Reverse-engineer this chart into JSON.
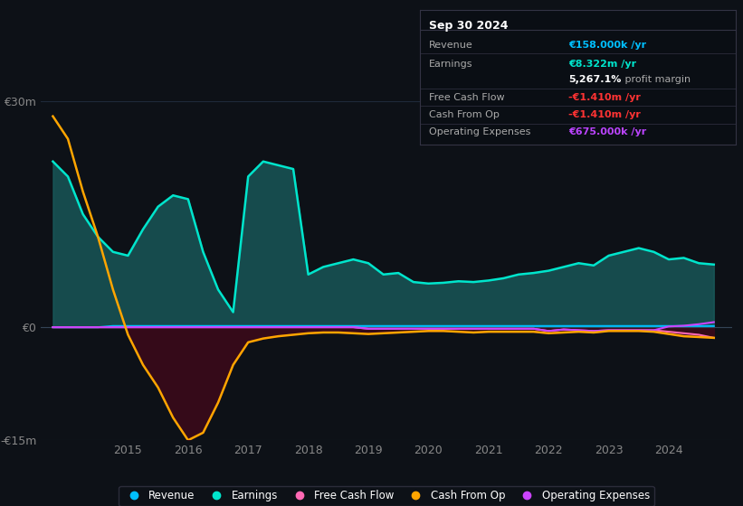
{
  "bg_color": "#0d1117",
  "plot_bg_color": "#0d1117",
  "grid_color": "#1e2a3a",
  "ylim": [
    -15000000,
    30000000
  ],
  "yticks": [
    -15000000,
    0,
    30000000
  ],
  "ytick_labels": [
    "-€15m",
    "€0",
    "€30m"
  ],
  "years": [
    2013.75,
    2014.0,
    2014.25,
    2014.5,
    2014.75,
    2015.0,
    2015.25,
    2015.5,
    2015.75,
    2016.0,
    2016.25,
    2016.5,
    2016.75,
    2017.0,
    2017.25,
    2017.5,
    2017.75,
    2018.0,
    2018.25,
    2018.5,
    2018.75,
    2019.0,
    2019.25,
    2019.5,
    2019.75,
    2020.0,
    2020.25,
    2020.5,
    2020.75,
    2021.0,
    2021.25,
    2021.5,
    2021.75,
    2022.0,
    2022.25,
    2022.5,
    2022.75,
    2023.0,
    2023.25,
    2023.5,
    2023.75,
    2024.0,
    2024.25,
    2024.5,
    2024.75
  ],
  "revenue": [
    0,
    0,
    0,
    0,
    158000,
    158000,
    158000,
    158000,
    158000,
    158000,
    158000,
    158000,
    158000,
    158000,
    158000,
    158000,
    158000,
    158000,
    158000,
    158000,
    158000,
    158000,
    158000,
    158000,
    158000,
    158000,
    158000,
    158000,
    158000,
    158000,
    158000,
    158000,
    158000,
    158000,
    158000,
    158000,
    158000,
    158000,
    158000,
    158000,
    158000,
    158000,
    158000,
    158000,
    158000
  ],
  "earnings": [
    22000000,
    20000000,
    15000000,
    12000000,
    10000000,
    9500000,
    13000000,
    16000000,
    17500000,
    17000000,
    10000000,
    5000000,
    2000000,
    20000000,
    22000000,
    21500000,
    21000000,
    7000000,
    8000000,
    8500000,
    9000000,
    8500000,
    7000000,
    7200000,
    6000000,
    5800000,
    5900000,
    6100000,
    6000000,
    6200000,
    6500000,
    7000000,
    7200000,
    7500000,
    8000000,
    8500000,
    8200000,
    9500000,
    10000000,
    10500000,
    10000000,
    9000000,
    9200000,
    8500000,
    8322000
  ],
  "free_cash_flow": [
    0,
    0,
    0,
    0,
    0,
    0,
    0,
    0,
    0,
    0,
    0,
    0,
    0,
    0,
    0,
    0,
    0,
    0,
    0,
    0,
    0,
    -200000,
    -200000,
    -200000,
    -200000,
    -200000,
    -200000,
    -200000,
    -200000,
    -200000,
    -200000,
    -200000,
    -200000,
    -500000,
    -300000,
    -400000,
    -500000,
    -400000,
    -400000,
    -400000,
    -400000,
    -600000,
    -800000,
    -1000000,
    -1410000
  ],
  "cash_from_op": [
    28000000,
    25000000,
    18000000,
    12000000,
    5000000,
    -1000000,
    -5000000,
    -8000000,
    -12000000,
    -15000000,
    -14000000,
    -10000000,
    -5000000,
    -2000000,
    -1500000,
    -1200000,
    -1000000,
    -800000,
    -700000,
    -700000,
    -800000,
    -900000,
    -800000,
    -700000,
    -600000,
    -500000,
    -500000,
    -600000,
    -700000,
    -600000,
    -600000,
    -600000,
    -600000,
    -800000,
    -700000,
    -600000,
    -700000,
    -500000,
    -500000,
    -500000,
    -600000,
    -900000,
    -1200000,
    -1300000,
    -1410000
  ],
  "operating_expenses": [
    0,
    0,
    0,
    0,
    0,
    0,
    0,
    0,
    0,
    0,
    0,
    0,
    0,
    0,
    0,
    0,
    0,
    0,
    0,
    0,
    0,
    -200000,
    -200000,
    -200000,
    -200000,
    -200000,
    -200000,
    -200000,
    -200000,
    -200000,
    -200000,
    -200000,
    -200000,
    -500000,
    -300000,
    -400000,
    -500000,
    -400000,
    -400000,
    -400000,
    -400000,
    100000,
    200000,
    400000,
    675000
  ],
  "revenue_color": "#00bfff",
  "earnings_color": "#00e5cc",
  "earnings_fill_pos": "#1a6060",
  "earnings_fill_neg": "#4a2040",
  "cash_from_op_fill_neg": "#3a0a1a",
  "fcf_color": "#ff69b4",
  "cash_from_op_color": "#ffa500",
  "op_exp_color": "#cc44ff",
  "legend_items": [
    {
      "label": "Revenue",
      "color": "#00bfff"
    },
    {
      "label": "Earnings",
      "color": "#00e5cc"
    },
    {
      "label": "Free Cash Flow",
      "color": "#ff69b4"
    },
    {
      "label": "Cash From Op",
      "color": "#ffa500"
    },
    {
      "label": "Operating Expenses",
      "color": "#cc44ff"
    }
  ],
  "box_bg": "#0a0e14",
  "box_border": "#333344",
  "box_date": "Sep 30 2024",
  "box_rows": [
    {
      "label": "Revenue",
      "value": "€158.000k /yr",
      "vcolor": "#00bfff",
      "divider": true
    },
    {
      "label": "Earnings",
      "value": "€8.322m /yr",
      "vcolor": "#00e5cc",
      "divider": false
    },
    {
      "label": "",
      "value": "5,267.1%",
      "vcolor": "#ffffff",
      "suffix": " profit margin",
      "divider": true
    },
    {
      "label": "Free Cash Flow",
      "value": "-€1.410m /yr",
      "vcolor": "#ff3333",
      "divider": true
    },
    {
      "label": "Cash From Op",
      "value": "-€1.410m /yr",
      "vcolor": "#ff3333",
      "divider": true
    },
    {
      "label": "Operating Expenses",
      "value": "€675.000k /yr",
      "vcolor": "#bb44ff",
      "divider": false
    }
  ]
}
